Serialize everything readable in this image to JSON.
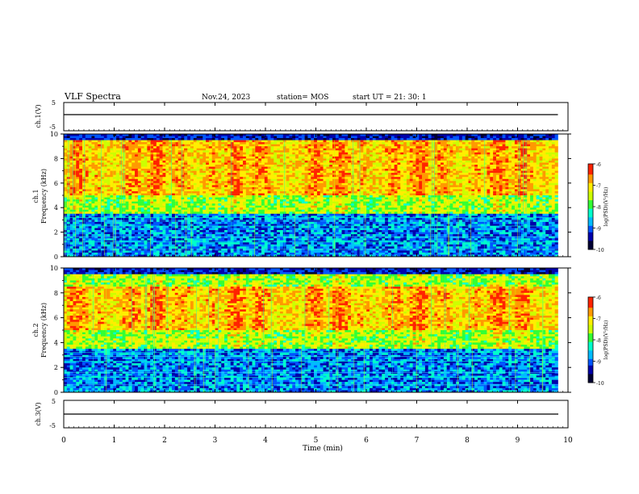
{
  "header": {
    "title": "VLF Spectra",
    "date": "Nov.24, 2023",
    "station": "station= MOS",
    "start": "start  UT =   21: 30: 1"
  },
  "colors": {
    "palette": [
      "#000033",
      "#0000aa",
      "#0055ff",
      "#00bbff",
      "#00ffcc",
      "#33ff33",
      "#ccff00",
      "#ffee00",
      "#ff9900",
      "#ff2200"
    ]
  },
  "chart_data": [
    {
      "type": "line",
      "name": "ch1-voltage",
      "ylabel": "ch.1(V)",
      "ylim": [
        -5,
        5
      ],
      "yticks": [
        "5",
        "-5"
      ],
      "x": [
        0,
        9.8
      ],
      "values": [
        0,
        0
      ]
    },
    {
      "type": "heatmap",
      "name": "ch1-spectrogram",
      "ylabel": "ch.1 Frequency (kHz)",
      "xlim": [
        0,
        10
      ],
      "ylim": [
        0,
        10
      ],
      "data_xrange": [
        0,
        9.8
      ],
      "yticks": [
        "0",
        "2",
        "4",
        "6",
        "8",
        "10"
      ],
      "colorbar": {
        "label": "log(PSD)(V²/Hz)",
        "ticks": [
          "-6",
          "-7",
          "-8",
          "-9",
          "-10"
        ],
        "range": [
          -10,
          -6
        ]
      },
      "intense_band_khz": [
        5,
        9.5
      ],
      "cutoff_khz": 9.5
    },
    {
      "type": "heatmap",
      "name": "ch2-spectrogram",
      "ylabel": "ch.2 Frequency (kHz)",
      "xlim": [
        0,
        10
      ],
      "ylim": [
        0,
        10
      ],
      "data_xrange": [
        0,
        9.8
      ],
      "yticks": [
        "0",
        "2",
        "4",
        "6",
        "8",
        "10"
      ],
      "colorbar": {
        "label": "log(PSD)(V²/Hz)",
        "ticks": [
          "-6",
          "-7",
          "-8",
          "-9",
          "-10"
        ],
        "range": [
          -10,
          -6
        ]
      },
      "intense_band_khz": [
        5,
        8.5
      ],
      "cutoff_khz": 9.5
    },
    {
      "type": "line",
      "name": "ch3-voltage",
      "ylabel": "ch.3(V)",
      "ylim": [
        -5,
        5
      ],
      "yticks": [
        "5",
        "-5"
      ],
      "x": [
        0,
        9.8
      ],
      "values": [
        0,
        0
      ]
    }
  ],
  "xaxis": {
    "label": "Time  (min)",
    "ticks": [
      "0",
      "1",
      "2",
      "3",
      "4",
      "5",
      "6",
      "7",
      "8",
      "9",
      "10"
    ]
  }
}
